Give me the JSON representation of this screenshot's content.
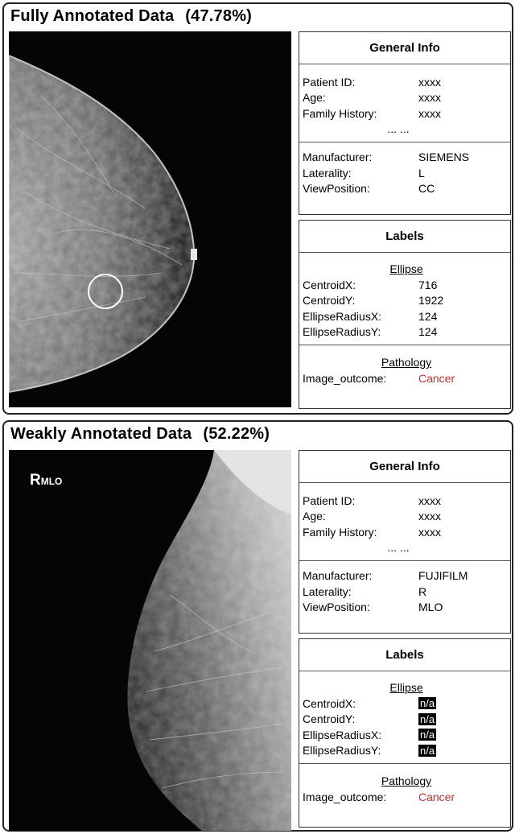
{
  "fully": {
    "title": "Fully Annotated Data",
    "percent": "(47.78%)",
    "general": {
      "heading": "General Info",
      "patient_id_k": "Patient ID:",
      "patient_id_v": "xxxx",
      "age_k": "Age:",
      "age_v": "xxxx",
      "family_k": "Family History:",
      "family_v": "xxxx",
      "dots": "... ...",
      "manufacturer_k": "Manufacturer:",
      "manufacturer_v": "SIEMENS",
      "laterality_k": "Laterality:",
      "laterality_v": "L",
      "view_k": "ViewPosition:",
      "view_v": "CC"
    },
    "labels": {
      "heading": "Labels",
      "ellipse": "Ellipse",
      "cx_k": "CentroidX:",
      "cx_v": "716",
      "cy_k": "CentroidY:",
      "cy_v": "1922",
      "rx_k": "EllipseRadiusX:",
      "rx_v": "124",
      "ry_k": "EllipseRadiusY:",
      "ry_v": "124",
      "pathology": "Pathology",
      "outcome_k": "Image_outcome:",
      "outcome_v": "Cancer"
    }
  },
  "weakly": {
    "title": "Weakly Annotated Data",
    "percent": "(52.22%)",
    "image_tag_main": "R",
    "image_tag_sub": "MLO",
    "general": {
      "heading": "General Info",
      "patient_id_k": "Patient ID:",
      "patient_id_v": "xxxx",
      "age_k": "Age:",
      "age_v": "xxxx",
      "family_k": "Family History:",
      "family_v": "xxxx",
      "dots": "... ...",
      "manufacturer_k": "Manufacturer:",
      "manufacturer_v": "FUJIFILM",
      "laterality_k": "Laterality:",
      "laterality_v": "R",
      "view_k": "ViewPosition:",
      "view_v": "MLO"
    },
    "labels": {
      "heading": "Labels",
      "ellipse": "Ellipse",
      "cx_k": "CentroidX:",
      "cx_v": "n/a",
      "cy_k": "CentroidY:",
      "cy_v": "n/a",
      "rx_k": "EllipseRadiusX:",
      "rx_v": "n/a",
      "ry_k": "EllipseRadiusY:",
      "ry_v": "n/a",
      "pathology": "Pathology",
      "outcome_k": "Image_outcome:",
      "outcome_v": "Cancer"
    }
  },
  "colors": {
    "cancer": "#c0302e",
    "panel_border": "#222222"
  }
}
